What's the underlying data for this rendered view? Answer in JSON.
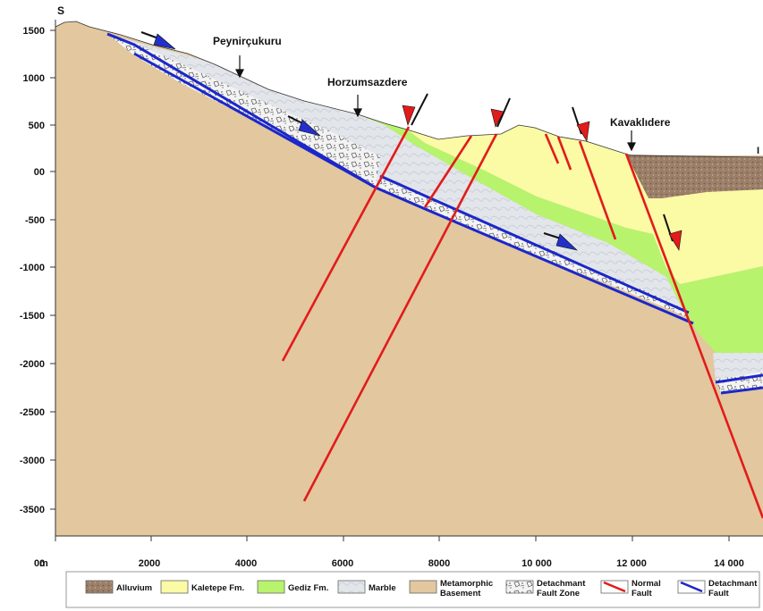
{
  "section": {
    "direction_label": "S",
    "partial_edge_label": "I"
  },
  "axes": {
    "y_unit_label": "m",
    "y_ticks": [
      "1500",
      "1000",
      "500",
      "00",
      "-500",
      "-1000",
      "-1500",
      "-2000",
      "-2500",
      "-3000",
      "-3500"
    ],
    "x_ticks": [
      "00",
      "2000",
      "4000",
      "6000",
      "8000",
      "10 000",
      "12 000",
      "14 000"
    ]
  },
  "places": [
    {
      "name": "Peynirçukuru"
    },
    {
      "name": "Horzumsazdere"
    },
    {
      "name": "Kavaklıdere"
    }
  ],
  "legend": [
    {
      "key": "alluvium",
      "line1": "Alluvium",
      "line2": "",
      "color": "#9b7f69"
    },
    {
      "key": "kaletepe",
      "line1": "Kaletepe Fm.",
      "line2": "",
      "color": "#fbfaa5"
    },
    {
      "key": "gediz",
      "line1": "Gediz Fm.",
      "line2": "",
      "color": "#b7f36d"
    },
    {
      "key": "marble",
      "line1": "Marble",
      "line2": "",
      "color": "#e2e5ea"
    },
    {
      "key": "basement",
      "line1": "Metamorphic",
      "line2": "Basement",
      "color": "#e2c79f"
    },
    {
      "key": "fault_zone",
      "line1": "Detachmant",
      "line2": "Fault Zone",
      "color": "#f0f0f0"
    },
    {
      "key": "normal_fault",
      "line1": "Normal",
      "line2": "Fault",
      "color": "#e21b1b"
    },
    {
      "key": "detachment_fault",
      "line1": "Detachmant",
      "line2": "Fault",
      "color": "#1c27c9"
    }
  ]
}
